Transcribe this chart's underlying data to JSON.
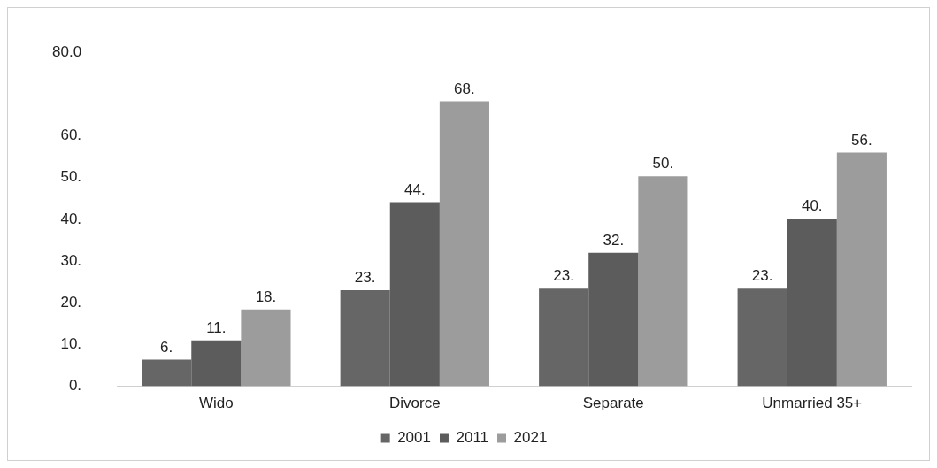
{
  "chart_data": {
    "type": "bar",
    "categories": [
      "Wido",
      "Divorce",
      "Separate",
      "Unmarried 35+"
    ],
    "series": [
      {
        "name": "2001",
        "color": "#666666",
        "values": [
          6.4,
          23.0,
          23.4,
          23.4
        ],
        "value_labels": [
          "6.",
          "23.",
          "23.",
          "23."
        ]
      },
      {
        "name": "2011",
        "color": "#5c5c5c",
        "values": [
          11.0,
          44.1,
          32.0,
          40.2
        ],
        "value_labels": [
          "11.",
          "44.",
          "32.",
          "40."
        ]
      },
      {
        "name": "2021",
        "color": "#9c9c9c",
        "values": [
          18.4,
          68.3,
          50.3,
          56.0
        ],
        "value_labels": [
          "18.",
          "68.",
          "50.",
          "56."
        ]
      }
    ],
    "ylim": [
      0,
      80
    ],
    "yticks": [
      {
        "value": 0,
        "label": "0."
      },
      {
        "value": 10,
        "label": "10."
      },
      {
        "value": 20,
        "label": "20."
      },
      {
        "value": 30,
        "label": "30."
      },
      {
        "value": 40,
        "label": "40."
      },
      {
        "value": 50,
        "label": "50."
      },
      {
        "value": 60,
        "label": "60."
      },
      {
        "value": 80,
        "label": "80.0"
      }
    ],
    "grid": false,
    "legend": "bottom"
  }
}
